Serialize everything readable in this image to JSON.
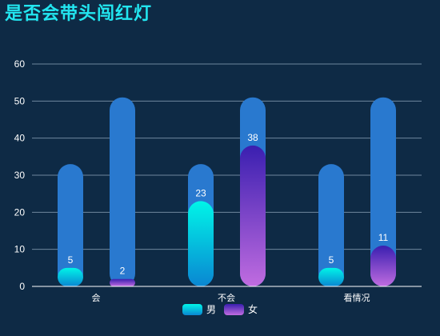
{
  "title": "是否会带头闯红灯",
  "chart_data": {
    "type": "bar",
    "title": "是否会带头闯红灯",
    "categories": [
      "会",
      "不会",
      "看情况"
    ],
    "series": [
      {
        "name": "男",
        "values": [
          5,
          23,
          5
        ],
        "background_value": 33,
        "gradient": [
          "#00f5e8",
          "#0a86d2"
        ]
      },
      {
        "name": "女",
        "values": [
          2,
          38,
          11
        ],
        "background_value": 51,
        "gradient": [
          "#3a1fb0",
          "#c06ce0"
        ]
      }
    ],
    "ylim": [
      0,
      60
    ],
    "yticks": [
      0,
      10,
      20,
      30,
      40,
      50,
      60
    ],
    "grid": true,
    "legend_position": "bottom-center",
    "track_color": "#2979cf",
    "grid_color": "#8fa6bb",
    "axis_color": "#ffffff"
  }
}
